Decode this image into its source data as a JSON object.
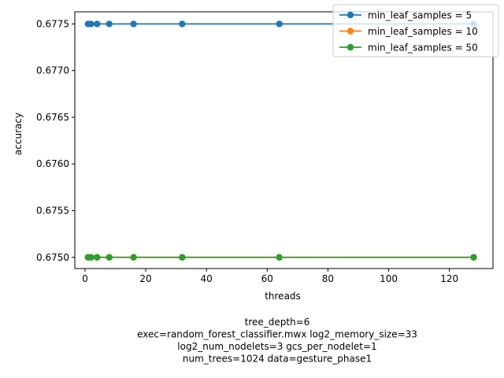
{
  "chart_data": {
    "type": "line",
    "xlabel": "threads",
    "ylabel": "accuracy",
    "xlim": [
      -3.35,
      134.35
    ],
    "ylim": [
      0.67488,
      0.67763
    ],
    "xticks": [
      0,
      20,
      40,
      60,
      80,
      100,
      120
    ],
    "yticks": [
      0.675,
      0.6755,
      0.676,
      0.6765,
      0.677,
      0.6775
    ],
    "ytick_labels": [
      "0.6750",
      "0.6755",
      "0.6760",
      "0.6765",
      "0.6770",
      "0.6775"
    ],
    "legend_position": "top-right",
    "series": [
      {
        "name": "min_leaf_samples = 5",
        "color": "#1f77b4",
        "x": [
          1,
          2,
          4,
          8,
          16,
          32,
          64,
          128
        ],
        "y": [
          0.6775,
          0.6775,
          0.6775,
          0.6775,
          0.6775,
          0.6775,
          0.6775,
          0.6775
        ]
      },
      {
        "name": "min_leaf_samples = 10",
        "color": "#ff7f0e",
        "x": [
          1,
          2,
          4,
          8,
          16,
          32,
          64,
          128
        ],
        "y": [
          0.675,
          0.675,
          0.675,
          0.675,
          0.675,
          0.675,
          0.675,
          0.675
        ]
      },
      {
        "name": "min_leaf_samples = 50",
        "color": "#2ca02c",
        "x": [
          1,
          2,
          4,
          8,
          16,
          32,
          64,
          128
        ],
        "y": [
          0.675,
          0.675,
          0.675,
          0.675,
          0.675,
          0.675,
          0.675,
          0.675
        ]
      }
    ],
    "caption_lines": [
      "tree_depth=6",
      "exec=random_forest_classifier.mwx   log2_memory_size=33",
      "log2_num_nodelets=3   gcs_per_nodelet=1",
      "num_trees=1024   data=gesture_phase1"
    ]
  }
}
